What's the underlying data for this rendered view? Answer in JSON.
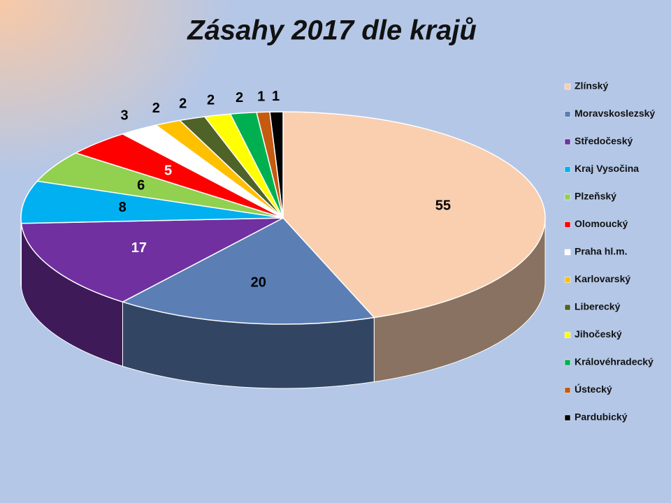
{
  "chart_data": {
    "type": "pie",
    "title": "Zásahy 2017 dle krajů",
    "categories": [
      "Zlínský",
      "Moravskoslezský",
      "Středočeský",
      "Kraj Vysočina",
      "Plzeňský",
      "Olomoucký",
      "Praha hl.m.",
      "Karlovarský",
      "Liberecký",
      "Jihočeský",
      "Královéhradecký",
      "Ústecký",
      "Pardubický"
    ],
    "values": [
      55,
      20,
      17,
      8,
      6,
      5,
      3,
      2,
      2,
      2,
      2,
      1,
      1
    ],
    "colors": [
      "#f9cfb0",
      "#5b7fb5",
      "#7030a0",
      "#00b0f0",
      "#92d050",
      "#ff0000",
      "#ffffff",
      "#ffc000",
      "#4f6228",
      "#ffff00",
      "#00b050",
      "#c55a11",
      "#000000"
    ],
    "legend": "right"
  }
}
